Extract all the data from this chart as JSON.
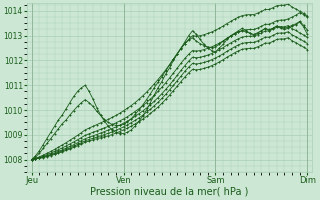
{
  "background_color": "#cce8d4",
  "plot_bg_color": "#cce8d4",
  "grid_color": "#aacfb8",
  "line_color": "#1a5c1a",
  "xlabel": "Pression niveau de la mer( hPa )",
  "xlabel_fontsize": 7,
  "yticks": [
    1008,
    1009,
    1010,
    1011,
    1012,
    1013,
    1014
  ],
  "ytick_labels": [
    "1008",
    "1009",
    "1010",
    "1011",
    "1012",
    "1013",
    "1014"
  ],
  "xtick_labels": [
    "Jeu",
    "Ven",
    "Sam",
    "Dim"
  ],
  "xtick_positions": [
    0,
    1,
    2,
    3
  ],
  "xlim": [
    -0.05,
    3.05
  ],
  "ylim": [
    1007.5,
    1014.3
  ],
  "lines": [
    {
      "name": "volatile_main",
      "x_start": 0,
      "x_end": 3,
      "y_values": [
        1008.0,
        1008.15,
        1008.35,
        1008.6,
        1008.85,
        1009.1,
        1009.35,
        1009.6,
        1009.8,
        1010.05,
        1010.3,
        1010.55,
        1010.75,
        1010.9,
        1011.0,
        1010.75,
        1010.45,
        1010.1,
        1009.8,
        1009.55,
        1009.35,
        1009.2,
        1009.1,
        1009.05,
        1009.05,
        1009.1,
        1009.2,
        1009.35,
        1009.55,
        1009.75,
        1010.0,
        1010.3,
        1010.6,
        1010.9,
        1011.15,
        1011.45,
        1011.7,
        1012.0,
        1012.25,
        1012.5,
        1012.75,
        1013.0,
        1013.2,
        1013.05,
        1012.85,
        1012.65,
        1012.5,
        1012.4,
        1012.35,
        1012.5,
        1012.65,
        1012.85,
        1013.0,
        1013.1,
        1013.2,
        1013.3,
        1013.2,
        1013.1,
        1013.0,
        1013.1,
        1013.2,
        1013.3,
        1013.2,
        1013.3,
        1013.4,
        1013.3,
        1013.25,
        1013.3,
        1013.38,
        1013.45,
        1013.55,
        1013.35,
        1013.05
      ]
    },
    {
      "name": "volatile_secondary",
      "x_start": 0,
      "x_end": 3,
      "y_values": [
        1008.0,
        1008.1,
        1008.25,
        1008.45,
        1008.65,
        1008.85,
        1009.05,
        1009.25,
        1009.45,
        1009.6,
        1009.8,
        1009.98,
        1010.15,
        1010.3,
        1010.42,
        1010.3,
        1010.15,
        1009.95,
        1009.78,
        1009.62,
        1009.5,
        1009.42,
        1009.38,
        1009.38,
        1009.42,
        1009.52,
        1009.65,
        1009.82,
        1010.0,
        1010.2,
        1010.42,
        1010.65,
        1010.9,
        1011.12,
        1011.35,
        1011.58,
        1011.82,
        1012.05,
        1012.28,
        1012.5,
        1012.68,
        1012.82,
        1012.92,
        1012.78,
        1012.68,
        1012.6,
        1012.55,
        1012.52,
        1012.55,
        1012.65,
        1012.78,
        1012.9,
        1013.0,
        1013.08,
        1013.15,
        1013.2,
        1013.15,
        1013.1,
        1013.05,
        1013.12,
        1013.2,
        1013.28,
        1013.25,
        1013.3,
        1013.38,
        1013.35,
        1013.3,
        1013.35,
        1013.42,
        1013.48,
        1013.58,
        1013.42,
        1013.22
      ]
    },
    {
      "name": "linear_a",
      "x_start": 0,
      "x_end": 3,
      "y_values": [
        1008.0,
        1008.04,
        1008.09,
        1008.14,
        1008.2,
        1008.26,
        1008.33,
        1008.4,
        1008.47,
        1008.55,
        1008.63,
        1008.71,
        1008.8,
        1008.89,
        1008.98,
        1009.04,
        1009.1,
        1009.16,
        1009.22,
        1009.28,
        1009.34,
        1009.41,
        1009.48,
        1009.56,
        1009.64,
        1009.73,
        1009.83,
        1009.94,
        1010.05,
        1010.17,
        1010.3,
        1010.44,
        1010.59,
        1010.75,
        1010.92,
        1011.1,
        1011.29,
        1011.49,
        1011.69,
        1011.89,
        1012.08,
        1012.25,
        1012.4,
        1012.38,
        1012.4,
        1012.44,
        1012.49,
        1012.55,
        1012.62,
        1012.7,
        1012.79,
        1012.89,
        1012.98,
        1013.07,
        1013.15,
        1013.21,
        1013.24,
        1013.25,
        1013.25,
        1013.31,
        1013.38,
        1013.46,
        1013.46,
        1013.53,
        1013.61,
        1013.63,
        1013.63,
        1013.68,
        1013.75,
        1013.83,
        1013.93,
        1013.85,
        1013.75
      ]
    },
    {
      "name": "linear_b",
      "x_start": 0,
      "x_end": 3,
      "y_values": [
        1008.0,
        1008.05,
        1008.11,
        1008.18,
        1008.25,
        1008.33,
        1008.41,
        1008.5,
        1008.59,
        1008.68,
        1008.78,
        1008.88,
        1008.98,
        1009.09,
        1009.2,
        1009.27,
        1009.34,
        1009.41,
        1009.48,
        1009.55,
        1009.62,
        1009.7,
        1009.78,
        1009.87,
        1009.97,
        1010.07,
        1010.18,
        1010.3,
        1010.43,
        1010.57,
        1010.72,
        1010.88,
        1011.05,
        1011.23,
        1011.42,
        1011.62,
        1011.83,
        1012.05,
        1012.27,
        1012.48,
        1012.68,
        1012.85,
        1013.0,
        1012.98,
        1013.0,
        1013.04,
        1013.09,
        1013.15,
        1013.22,
        1013.3,
        1013.39,
        1013.49,
        1013.58,
        1013.67,
        1013.75,
        1013.81,
        1013.84,
        1013.85,
        1013.85,
        1013.91,
        1013.98,
        1014.06,
        1014.06,
        1014.13,
        1014.21,
        1014.23,
        1014.23,
        1014.28,
        1014.15,
        1014.08,
        1013.98,
        1013.9,
        1013.8
      ]
    },
    {
      "name": "linear_c",
      "x_start": 0,
      "x_end": 3,
      "y_values": [
        1008.0,
        1008.035,
        1008.07,
        1008.11,
        1008.16,
        1008.21,
        1008.27,
        1008.33,
        1008.39,
        1008.46,
        1008.53,
        1008.6,
        1008.68,
        1008.76,
        1008.84,
        1008.9,
        1008.96,
        1009.01,
        1009.07,
        1009.13,
        1009.19,
        1009.25,
        1009.32,
        1009.39,
        1009.47,
        1009.55,
        1009.64,
        1009.74,
        1009.85,
        1009.96,
        1010.08,
        1010.21,
        1010.35,
        1010.5,
        1010.66,
        1010.83,
        1011.01,
        1011.2,
        1011.4,
        1011.6,
        1011.79,
        1011.97,
        1012.13,
        1012.11,
        1012.13,
        1012.17,
        1012.22,
        1012.28,
        1012.35,
        1012.43,
        1012.52,
        1012.62,
        1012.71,
        1012.8,
        1012.88,
        1012.94,
        1012.97,
        1012.98,
        1012.98,
        1013.04,
        1013.11,
        1013.19,
        1013.19,
        1013.26,
        1013.34,
        1013.36,
        1013.36,
        1013.41,
        1013.28,
        1013.21,
        1013.11,
        1013.03,
        1012.93
      ]
    },
    {
      "name": "linear_d",
      "x_start": 0,
      "x_end": 3,
      "y_values": [
        1008.0,
        1008.03,
        1008.06,
        1008.1,
        1008.14,
        1008.19,
        1008.24,
        1008.29,
        1008.35,
        1008.41,
        1008.47,
        1008.54,
        1008.61,
        1008.68,
        1008.76,
        1008.81,
        1008.86,
        1008.91,
        1008.96,
        1009.01,
        1009.06,
        1009.12,
        1009.18,
        1009.25,
        1009.32,
        1009.4,
        1009.49,
        1009.58,
        1009.68,
        1009.79,
        1009.91,
        1010.03,
        1010.17,
        1010.31,
        1010.47,
        1010.63,
        1010.81,
        1010.99,
        1011.18,
        1011.37,
        1011.56,
        1011.73,
        1011.88,
        1011.86,
        1011.88,
        1011.92,
        1011.97,
        1012.03,
        1012.1,
        1012.18,
        1012.27,
        1012.37,
        1012.46,
        1012.55,
        1012.63,
        1012.69,
        1012.72,
        1012.73,
        1012.73,
        1012.79,
        1012.86,
        1012.94,
        1012.94,
        1013.01,
        1013.09,
        1013.11,
        1013.11,
        1013.16,
        1013.03,
        1012.96,
        1012.86,
        1012.78,
        1012.68
      ]
    },
    {
      "name": "linear_e",
      "x_start": 0,
      "x_end": 3,
      "y_values": [
        1008.0,
        1008.025,
        1008.05,
        1008.08,
        1008.12,
        1008.16,
        1008.21,
        1008.26,
        1008.31,
        1008.37,
        1008.43,
        1008.49,
        1008.56,
        1008.63,
        1008.7,
        1008.75,
        1008.8,
        1008.84,
        1008.88,
        1008.92,
        1008.96,
        1009.01,
        1009.07,
        1009.13,
        1009.2,
        1009.27,
        1009.35,
        1009.44,
        1009.53,
        1009.63,
        1009.74,
        1009.86,
        1009.99,
        1010.12,
        1010.27,
        1010.43,
        1010.6,
        1010.78,
        1010.96,
        1011.15,
        1011.33,
        1011.5,
        1011.64,
        1011.62,
        1011.64,
        1011.68,
        1011.73,
        1011.79,
        1011.86,
        1011.94,
        1012.03,
        1012.13,
        1012.22,
        1012.31,
        1012.39,
        1012.45,
        1012.48,
        1012.49,
        1012.49,
        1012.55,
        1012.62,
        1012.7,
        1012.7,
        1012.77,
        1012.85,
        1012.87,
        1012.87,
        1012.92,
        1012.79,
        1012.72,
        1012.62,
        1012.54,
        1012.44
      ]
    }
  ]
}
